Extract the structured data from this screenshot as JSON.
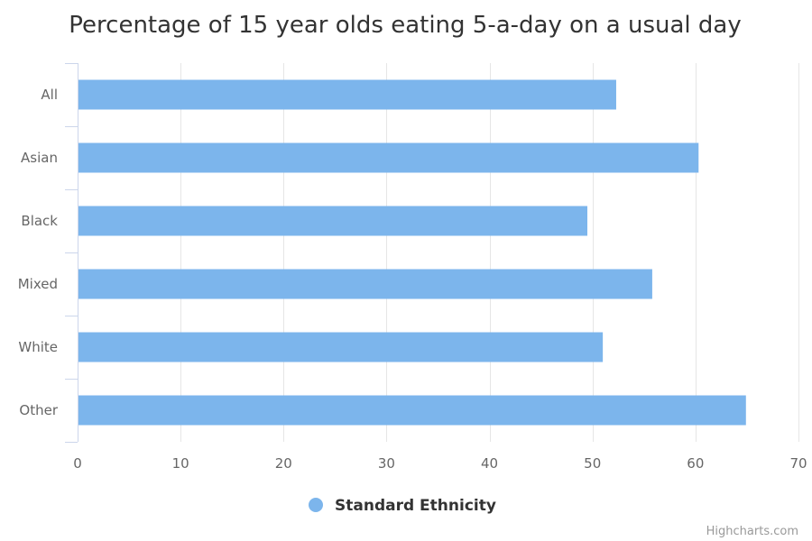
{
  "chart_data": {
    "type": "bar",
    "orientation": "horizontal",
    "title": "Percentage of 15 year olds eating 5-a-day on a usual day",
    "categories": [
      "All",
      "Asian",
      "Black",
      "Mixed",
      "White",
      "Other"
    ],
    "series": [
      {
        "name": "Standard Ethnicity",
        "values": [
          52.3,
          60.3,
          49.5,
          55.8,
          51.0,
          64.9
        ],
        "color": "#7cb5ec"
      }
    ],
    "xlim": [
      0,
      70
    ],
    "x_ticks": [
      "0",
      "10",
      "20",
      "30",
      "40",
      "50",
      "60",
      "70"
    ],
    "grid": true,
    "legend_position": "bottom-center"
  },
  "credits": "Highcharts.com"
}
